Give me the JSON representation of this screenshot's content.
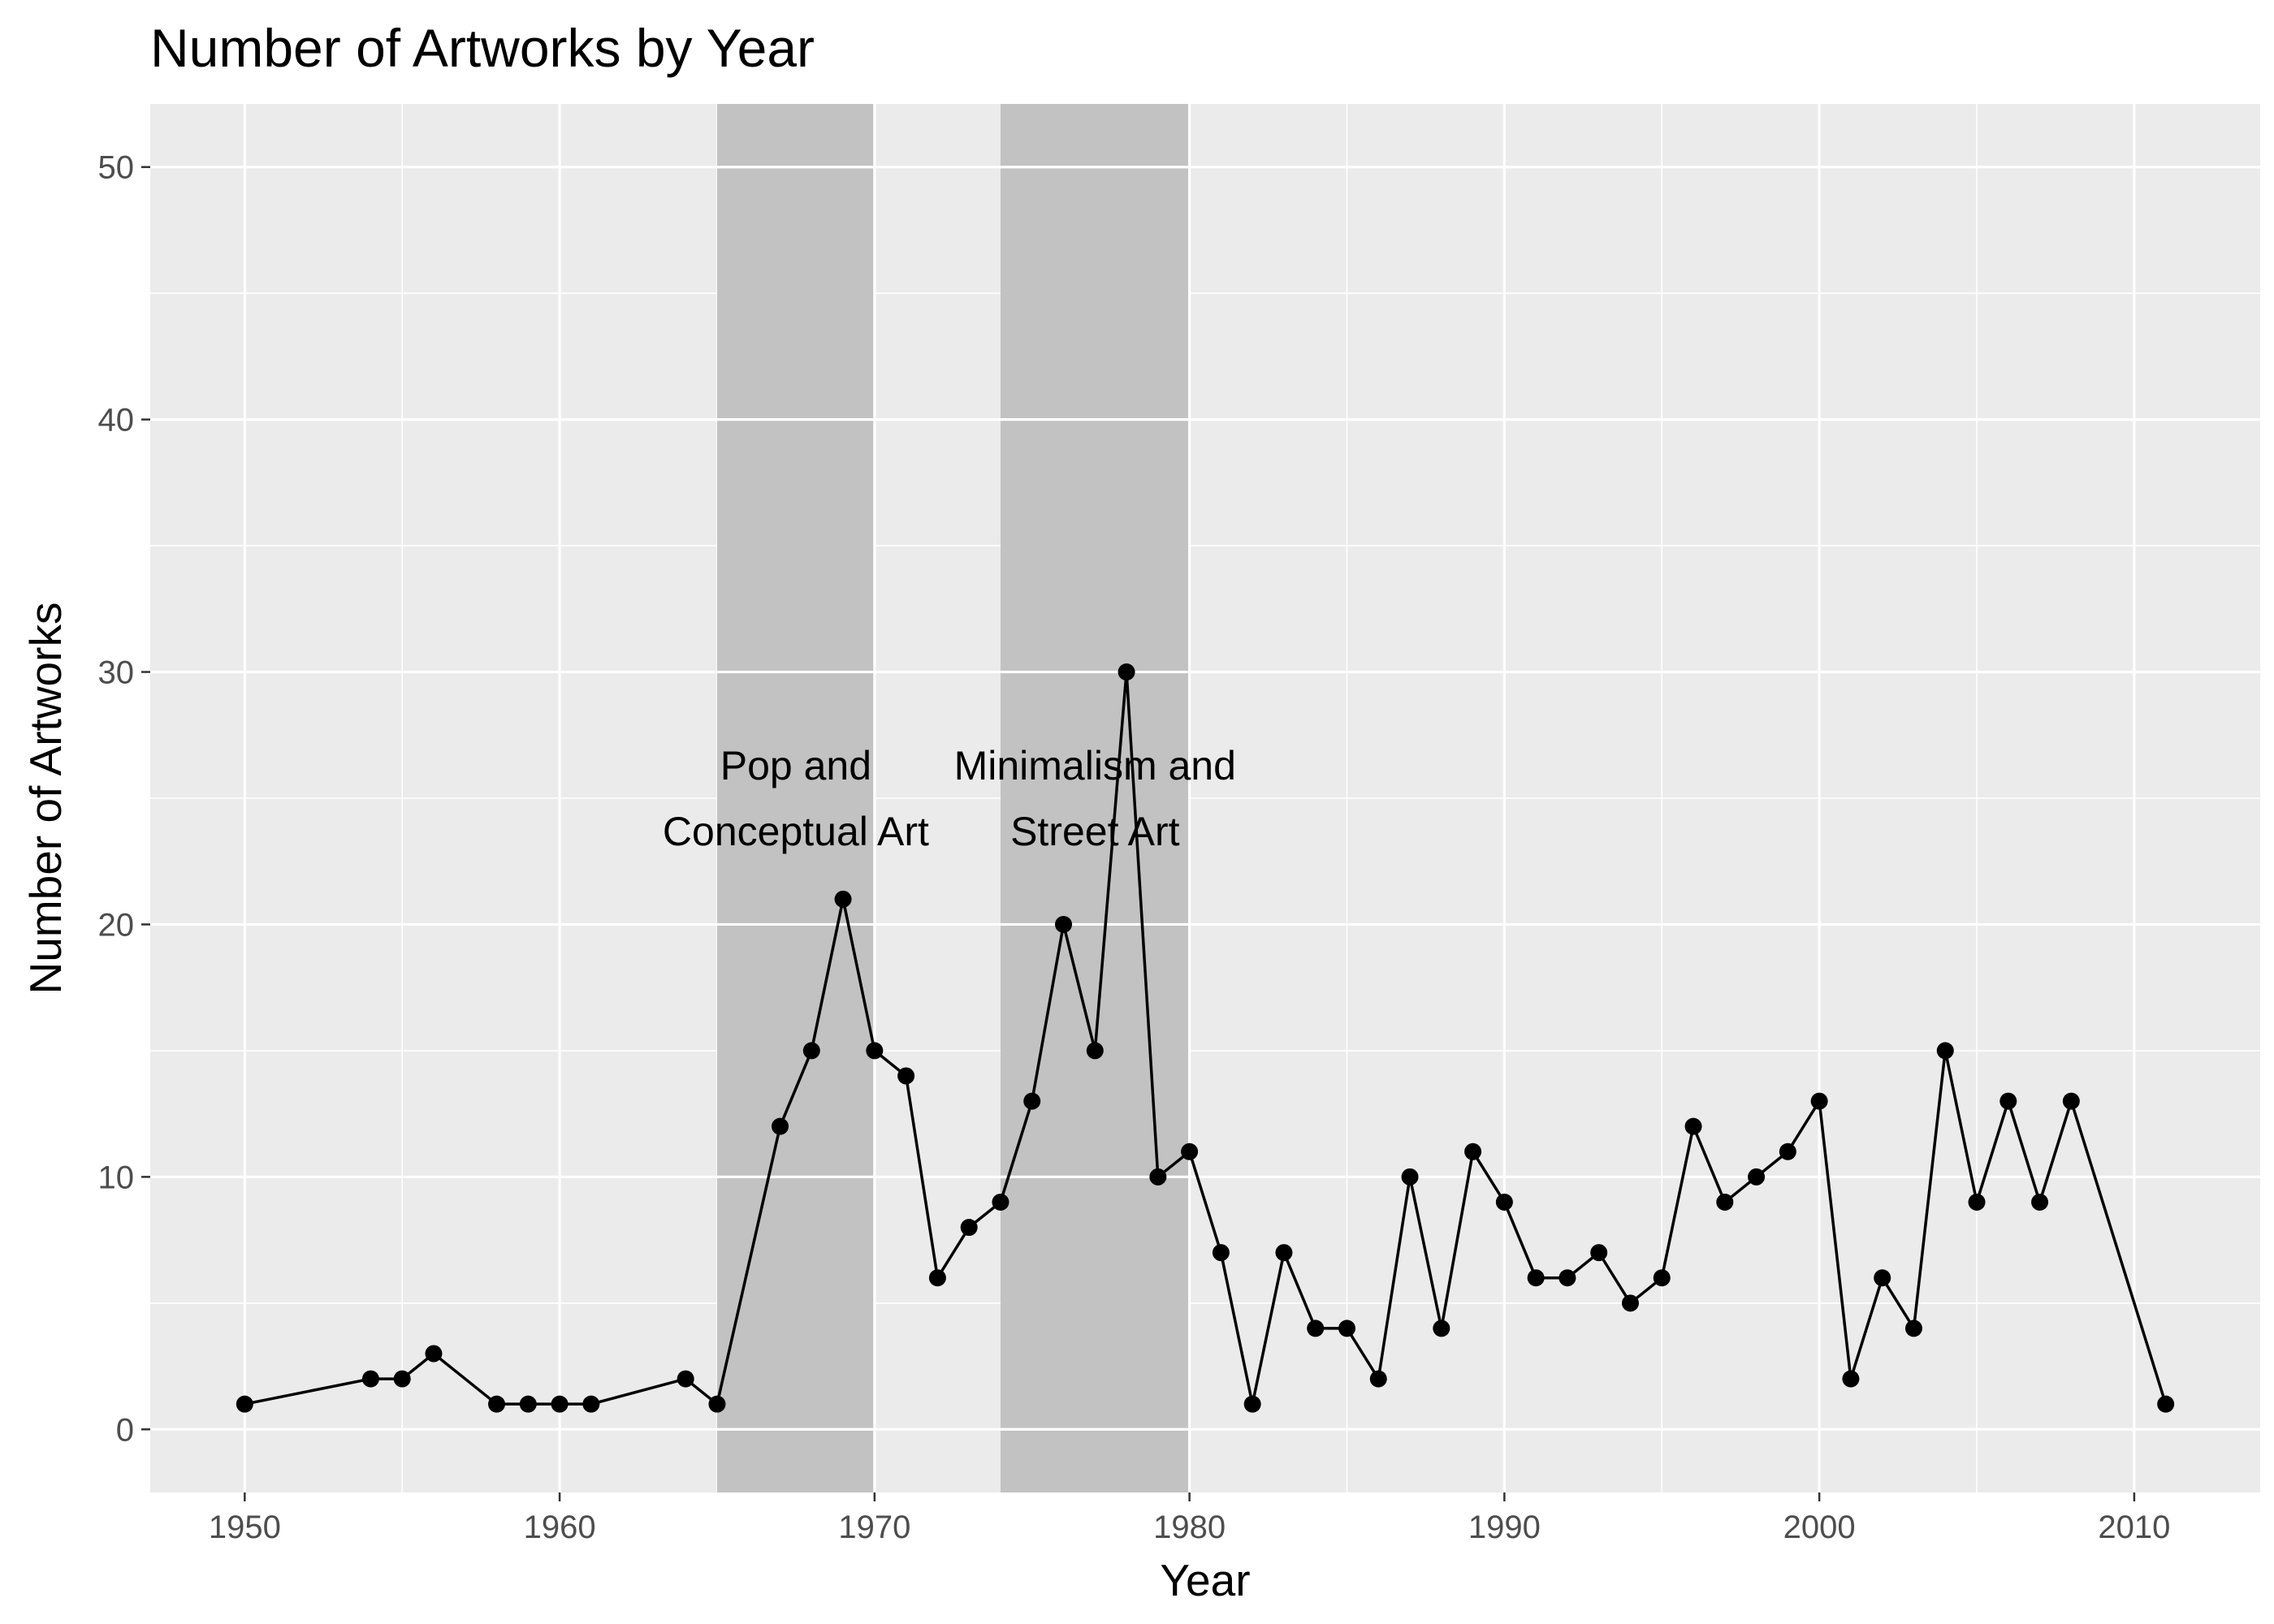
{
  "chart_data": {
    "type": "line",
    "title": "Number of Artworks by Year",
    "xlabel": "Year",
    "ylabel": "Number of Artworks",
    "xlim": [
      1947,
      2014
    ],
    "ylim": [
      -2.5,
      52.5
    ],
    "x_ticks": [
      1950,
      1960,
      1970,
      1980,
      1990,
      2000,
      2010
    ],
    "y_ticks": [
      0,
      10,
      20,
      30,
      40,
      50
    ],
    "grid": true,
    "legend": "none",
    "colors": {
      "panel_background": "#ebebeb",
      "grid_line": "#ffffff",
      "band_fill": "#c2c2c2",
      "series": "#000000"
    },
    "bands": [
      {
        "x_start": 1965,
        "x_end": 1970,
        "label_lines": [
          "Pop and",
          "Conceptual Art"
        ]
      },
      {
        "x_start": 1974,
        "x_end": 1980,
        "label_lines": [
          "Minimalism and",
          "Street Art"
        ]
      }
    ],
    "series": [
      {
        "points": [
          [
            1950,
            1
          ],
          [
            1954,
            2
          ],
          [
            1955,
            2
          ],
          [
            1956,
            3
          ],
          [
            1958,
            1
          ],
          [
            1959,
            1
          ],
          [
            1960,
            1
          ],
          [
            1961,
            1
          ],
          [
            1964,
            2
          ],
          [
            1965,
            1
          ],
          [
            1967,
            12
          ],
          [
            1968,
            15
          ],
          [
            1969,
            21
          ],
          [
            1970,
            15
          ],
          [
            1971,
            14
          ],
          [
            1972,
            6
          ],
          [
            1973,
            8
          ],
          [
            1974,
            9
          ],
          [
            1975,
            13
          ],
          [
            1976,
            20
          ],
          [
            1977,
            15
          ],
          [
            1978,
            30
          ],
          [
            1979,
            10
          ],
          [
            1980,
            11
          ],
          [
            1981,
            7
          ],
          [
            1982,
            1
          ],
          [
            1983,
            7
          ],
          [
            1984,
            4
          ],
          [
            1985,
            4
          ],
          [
            1986,
            2
          ],
          [
            1987,
            10
          ],
          [
            1988,
            4
          ],
          [
            1989,
            11
          ],
          [
            1990,
            9
          ],
          [
            1991,
            6
          ],
          [
            1992,
            6
          ],
          [
            1993,
            7
          ],
          [
            1994,
            5
          ],
          [
            1995,
            6
          ],
          [
            1996,
            12
          ],
          [
            1997,
            9
          ],
          [
            1998,
            10
          ],
          [
            1999,
            11
          ],
          [
            2000,
            13
          ],
          [
            2001,
            2
          ],
          [
            2002,
            6
          ],
          [
            2003,
            4
          ],
          [
            2004,
            15
          ],
          [
            2005,
            9
          ],
          [
            2006,
            13
          ],
          [
            2007,
            9
          ],
          [
            2008,
            13
          ],
          [
            2011,
            1
          ]
        ]
      }
    ]
  }
}
